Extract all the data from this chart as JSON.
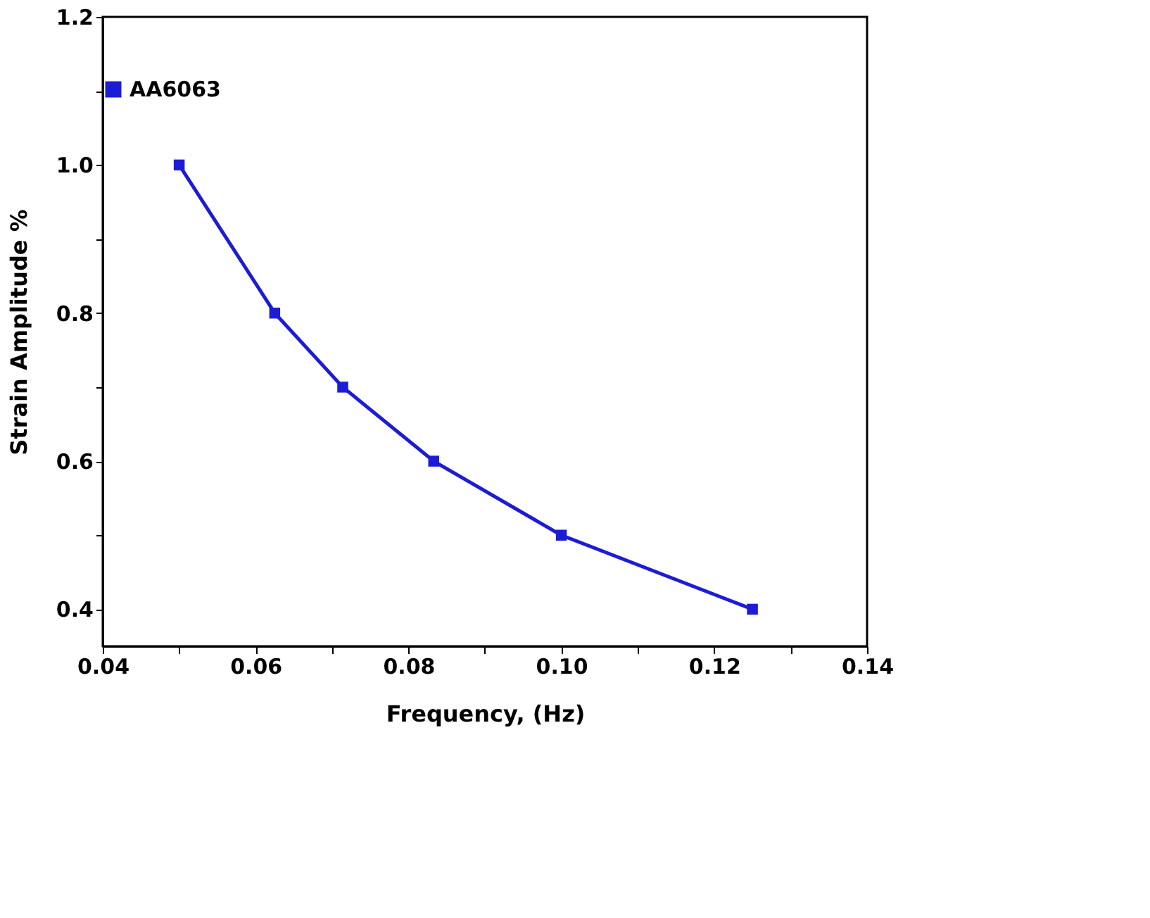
{
  "chart_data": {
    "type": "line",
    "xlabel": "Frequency, (Hz)",
    "ylabel": "Strain Amplitude  %",
    "x": [
      0.05,
      0.0625,
      0.0714,
      0.0833,
      0.1,
      0.125
    ],
    "series": [
      {
        "name": "AA6063",
        "color": "#1c1cd6",
        "values": [
          1.0,
          0.8,
          0.7,
          0.6,
          0.5,
          0.4
        ]
      }
    ],
    "xlim": [
      0.04,
      0.14
    ],
    "xticks": [
      {
        "value": 0.04,
        "label": "0.04"
      },
      {
        "value": 0.05,
        "label": null
      },
      {
        "value": 0.06,
        "label": "0.06"
      },
      {
        "value": 0.07,
        "label": null
      },
      {
        "value": 0.08,
        "label": "0.08"
      },
      {
        "value": 0.09,
        "label": null
      },
      {
        "value": 0.1,
        "label": "0.10"
      },
      {
        "value": 0.11,
        "label": null
      },
      {
        "value": 0.12,
        "label": "0.12"
      },
      {
        "value": 0.13,
        "label": null
      },
      {
        "value": 0.14,
        "label": "0.14"
      }
    ],
    "ylim": [
      0.35,
      1.2
    ],
    "yticks": [
      {
        "value": 0.4,
        "label": "0.4"
      },
      {
        "value": 0.5,
        "label": null
      },
      {
        "value": 0.6,
        "label": "0.6"
      },
      {
        "value": 0.7,
        "label": null
      },
      {
        "value": 0.8,
        "label": "0.8"
      },
      {
        "value": 0.9,
        "label": null
      },
      {
        "value": 1.0,
        "label": "1.0"
      },
      {
        "value": 1.1,
        "label": null
      },
      {
        "value": 1.2,
        "label": "1.2"
      }
    ],
    "marker": "square",
    "line_style": "solid",
    "grid": false,
    "legend": "top"
  }
}
